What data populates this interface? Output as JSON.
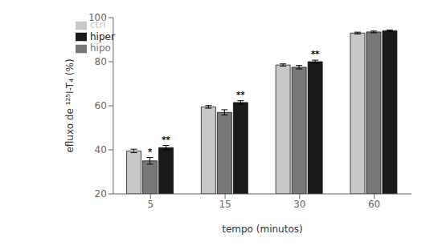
{
  "chart_data": {
    "type": "bar",
    "xlabel": "tempo (minutos)",
    "ylabel": "efluxo de ¹²⁵I-T₄ (%)",
    "categories": [
      "5",
      "15",
      "30",
      "60"
    ],
    "series": [
      {
        "name": "ctrl",
        "color": "#c8c8c8",
        "values": [
          39.5,
          59.5,
          78.5,
          93.0
        ],
        "errors": [
          0.8,
          0.6,
          0.5,
          0.4
        ],
        "significance": [
          null,
          null,
          null,
          null
        ]
      },
      {
        "name": "hipo",
        "color": "#787878",
        "values": [
          35.0,
          57.0,
          77.5,
          93.5
        ],
        "errors": [
          1.5,
          1.2,
          0.8,
          0.4
        ],
        "significance": [
          "*",
          null,
          null,
          null
        ]
      },
      {
        "name": "hiper",
        "color": "#1a1a1a",
        "values": [
          41.0,
          61.5,
          80.0,
          94.0
        ],
        "errors": [
          1.0,
          0.8,
          0.7,
          0.4
        ],
        "significance": [
          "**",
          "**",
          "**",
          null
        ]
      }
    ],
    "ylim": [
      20,
      100
    ],
    "yticks": [
      20,
      40,
      60,
      80,
      100
    ],
    "legend": "upper left",
    "grid": false
  }
}
